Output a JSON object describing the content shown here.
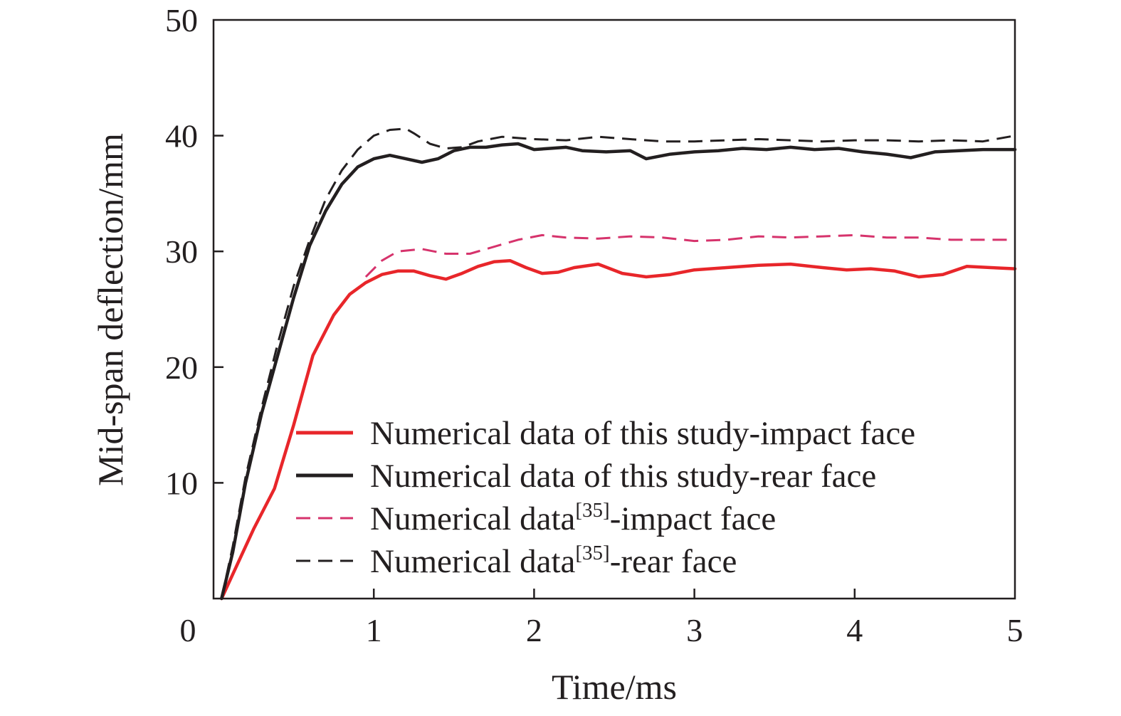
{
  "chart_data": {
    "type": "line",
    "xlabel": "Time/ms",
    "ylabel": "Mid-span deflection/mm",
    "xlim": [
      0,
      5
    ],
    "ylim": [
      0,
      50
    ],
    "x_ticks": [
      "0",
      "1",
      "2",
      "3",
      "4",
      "5"
    ],
    "y_ticks": [
      "10",
      "20",
      "30",
      "40",
      "50"
    ],
    "grid": false,
    "legend_position": "bottom-right",
    "series": [
      {
        "name": "Numerical data of this study-impact face",
        "legend_main": "Numerical data of this study-impact face",
        "legend_sup": "",
        "legend_tail": "",
        "color": "#e8262a",
        "style": "solid",
        "x": [
          0.05,
          0.15,
          0.25,
          0.38,
          0.5,
          0.62,
          0.75,
          0.85,
          0.95,
          1.05,
          1.15,
          1.25,
          1.35,
          1.45,
          1.55,
          1.65,
          1.75,
          1.85,
          1.95,
          2.05,
          2.15,
          2.25,
          2.4,
          2.55,
          2.7,
          2.85,
          3.0,
          3.2,
          3.4,
          3.6,
          3.8,
          3.95,
          4.1,
          4.25,
          4.4,
          4.55,
          4.7,
          4.85,
          5.0
        ],
        "y": [
          0,
          3,
          6,
          9.5,
          15,
          21,
          24.5,
          26.3,
          27.3,
          28.0,
          28.3,
          28.3,
          27.9,
          27.6,
          28.1,
          28.7,
          29.1,
          29.2,
          28.6,
          28.1,
          28.2,
          28.6,
          28.9,
          28.1,
          27.8,
          28.0,
          28.4,
          28.6,
          28.8,
          28.9,
          28.6,
          28.4,
          28.5,
          28.3,
          27.8,
          28.0,
          28.7,
          28.6,
          28.5
        ]
      },
      {
        "name": "Numerical data of this study-rear face",
        "legend_main": "Numerical data of this study-rear face",
        "legend_sup": "",
        "legend_tail": "",
        "color": "#231f20",
        "style": "solid",
        "x": [
          0.05,
          0.12,
          0.2,
          0.3,
          0.4,
          0.5,
          0.6,
          0.7,
          0.8,
          0.9,
          1.0,
          1.1,
          1.2,
          1.3,
          1.4,
          1.5,
          1.6,
          1.7,
          1.8,
          1.9,
          2.0,
          2.1,
          2.2,
          2.3,
          2.45,
          2.6,
          2.7,
          2.85,
          3.0,
          3.15,
          3.3,
          3.45,
          3.6,
          3.75,
          3.9,
          4.05,
          4.2,
          4.35,
          4.5,
          4.65,
          4.8,
          5.0
        ],
        "y": [
          0,
          4,
          10,
          16,
          21,
          26,
          30.5,
          33.5,
          35.8,
          37.3,
          38.0,
          38.3,
          38.0,
          37.7,
          38.0,
          38.7,
          39.0,
          39.0,
          39.2,
          39.3,
          38.8,
          38.9,
          39.0,
          38.7,
          38.6,
          38.7,
          38.0,
          38.4,
          38.6,
          38.7,
          38.9,
          38.8,
          39.0,
          38.8,
          38.9,
          38.6,
          38.4,
          38.1,
          38.6,
          38.7,
          38.8,
          38.8
        ]
      },
      {
        "name": "Numerical data[35]-impact face",
        "legend_main": "Numerical data",
        "legend_sup": "[35]",
        "legend_tail": "-impact face",
        "color": "#d6336c",
        "style": "dashed",
        "x": [
          0.95,
          1.05,
          1.15,
          1.3,
          1.45,
          1.6,
          1.75,
          1.9,
          2.05,
          2.2,
          2.4,
          2.6,
          2.8,
          3.0,
          3.2,
          3.4,
          3.6,
          3.8,
          4.0,
          4.2,
          4.4,
          4.6,
          4.8,
          5.0
        ],
        "y": [
          27.8,
          29.2,
          30.0,
          30.2,
          29.8,
          29.8,
          30.4,
          31.0,
          31.4,
          31.2,
          31.1,
          31.3,
          31.2,
          30.9,
          31.0,
          31.3,
          31.2,
          31.3,
          31.4,
          31.2,
          31.2,
          31.0,
          31.0,
          31.0
        ]
      },
      {
        "name": "Numerical data[35]-rear face",
        "legend_main": "Numerical data",
        "legend_sup": "[35]",
        "legend_tail": "-rear face",
        "color": "#231f20",
        "style": "dashed",
        "x": [
          0.05,
          0.12,
          0.2,
          0.3,
          0.4,
          0.5,
          0.6,
          0.7,
          0.8,
          0.9,
          1.0,
          1.1,
          1.2,
          1.25,
          1.35,
          1.45,
          1.55,
          1.65,
          1.8,
          2.0,
          2.2,
          2.4,
          2.6,
          2.8,
          3.0,
          3.2,
          3.4,
          3.6,
          3.8,
          4.0,
          4.2,
          4.4,
          4.6,
          4.8,
          5.0
        ],
        "y": [
          0,
          4.5,
          10.5,
          16.5,
          22,
          27,
          31,
          34.5,
          37,
          38.8,
          40.0,
          40.5,
          40.6,
          40.2,
          39.3,
          38.9,
          39.0,
          39.5,
          39.9,
          39.7,
          39.6,
          39.9,
          39.7,
          39.5,
          39.5,
          39.6,
          39.7,
          39.6,
          39.5,
          39.6,
          39.6,
          39.5,
          39.6,
          39.5,
          40.0
        ]
      }
    ]
  }
}
